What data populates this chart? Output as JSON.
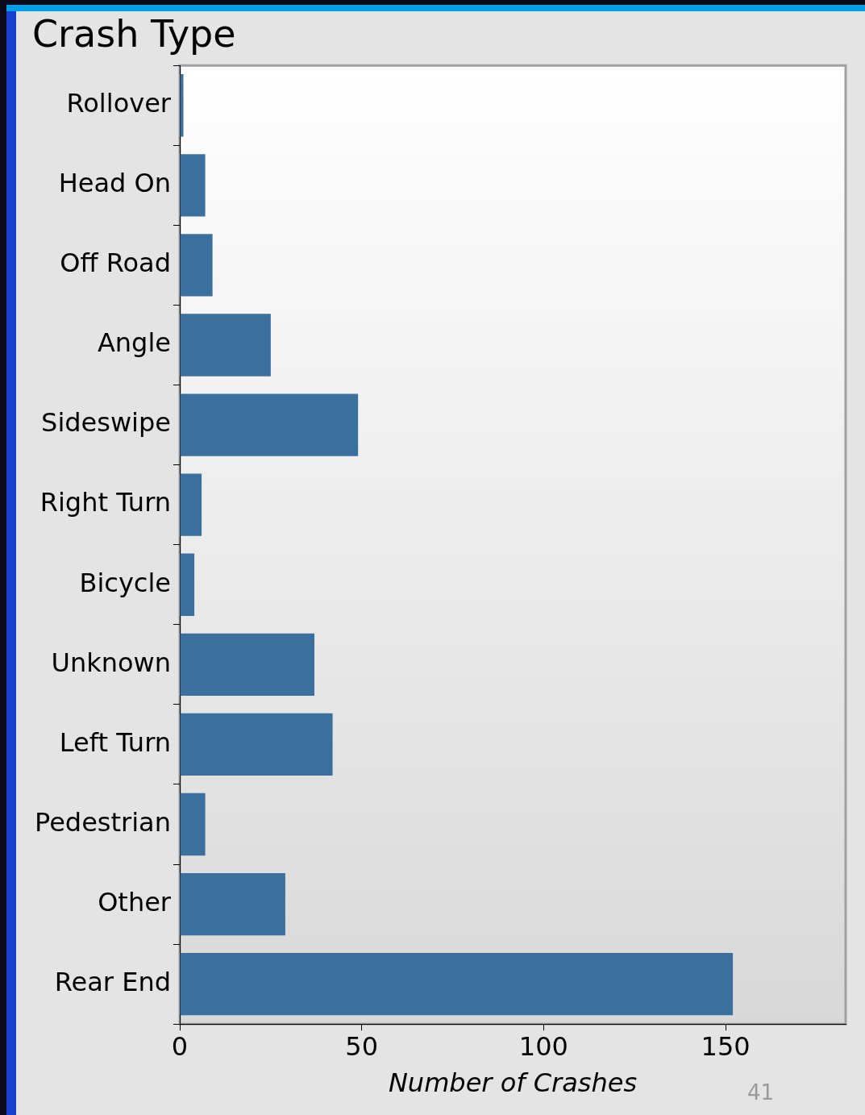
{
  "chart_data": {
    "type": "bar",
    "orientation": "horizontal",
    "title": "Crash Type",
    "xlabel": "Number of Crashes",
    "categories": [
      "Rollover",
      "Head On",
      "Off Road",
      "Angle",
      "Sideswipe",
      "Right Turn",
      "Bicycle",
      "Unknown",
      "Left Turn",
      "Pedestrian",
      "Other",
      "Rear End"
    ],
    "values": [
      1,
      7,
      9,
      25,
      49,
      6,
      4,
      37,
      42,
      7,
      29,
      152
    ],
    "color": "#3a6f9e",
    "xlim": [
      0,
      183
    ],
    "xticks": [
      0,
      50,
      100,
      150
    ],
    "grid": false,
    "legend": false,
    "annotations": [
      "41"
    ]
  }
}
